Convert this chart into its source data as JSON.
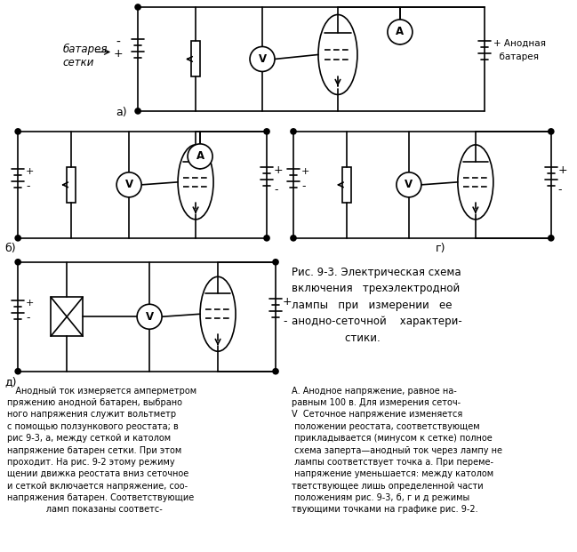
{
  "bg_color": "#ffffff",
  "text_color": "#000000",
  "fig_width": 6.49,
  "fig_height": 6.21,
  "dpi": 100,
  "caption": "Рис. 9-3. Электрическая схема\nвключения   трехэлектродной\nлампы   при   измерении   ее\nанодно-сеточной    характери-\n                стики.",
  "body_left": "   Анодный ток измеряется амперметром\nпряжению анодной батарен, выбрано\nного напряжения служит вольтметр\nс помощью ползункового реостата; в\nрис 9-3, а, между сеткой и католом\nнапряжение батарен сетки. При этом\nпроходит. На рис. 9-2 этому режиму\nщении движка реостата вниз сеточное\nи сеткой включается напряжение, соо-\nнапряжения батарен. Соответствующие\n              ламп показаны соответс-",
  "body_right": "А. Анодное напряжение, равное на-\nравным 100 в. Для измерения сеточ-\nV  Сеточное напряжение изменяется\n положении реостата, соответствующем\n прикладывается (минусом к сетке) полное\n схема заперта—анодный ток через лампу не\n лампы соответствует точка а. При переме-\n напряжение уменьшается: между католом\nтветствующее лишь определенной части\n положениям рис. 9-3, б, г и д режимы\nтвующими точками на графике рис. 9-2.",
  "label_a": "а)",
  "label_b": "б)",
  "label_g": "г)",
  "label_d": "д)",
  "battery_grid_label": "батарея\nсетки",
  "anode_battery_label": "+ Анодная\n  батарея"
}
